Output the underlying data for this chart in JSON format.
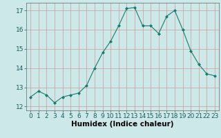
{
  "x": [
    0,
    1,
    2,
    3,
    4,
    5,
    6,
    7,
    8,
    9,
    10,
    11,
    12,
    13,
    14,
    15,
    16,
    17,
    18,
    19,
    20,
    21,
    22,
    23
  ],
  "y": [
    12.5,
    12.8,
    12.6,
    12.2,
    12.5,
    12.6,
    12.7,
    13.1,
    14.0,
    14.8,
    15.4,
    16.2,
    17.1,
    17.15,
    16.2,
    16.2,
    15.8,
    16.7,
    17.0,
    16.0,
    14.9,
    14.2,
    13.7,
    13.6
  ],
  "line_color": "#1a7a6e",
  "marker_color": "#1a7a6e",
  "bg_color": "#cce8e8",
  "grid_color": "#cc9999",
  "xlabel": "Humidex (Indice chaleur)",
  "ylim": [
    11.8,
    17.4
  ],
  "xlim": [
    -0.5,
    23.5
  ],
  "yticks": [
    12,
    13,
    14,
    15,
    16,
    17
  ],
  "xticks": [
    0,
    1,
    2,
    3,
    4,
    5,
    6,
    7,
    8,
    9,
    10,
    11,
    12,
    13,
    14,
    15,
    16,
    17,
    18,
    19,
    20,
    21,
    22,
    23
  ],
  "tick_fontsize": 6.5,
  "xlabel_fontsize": 7.5
}
